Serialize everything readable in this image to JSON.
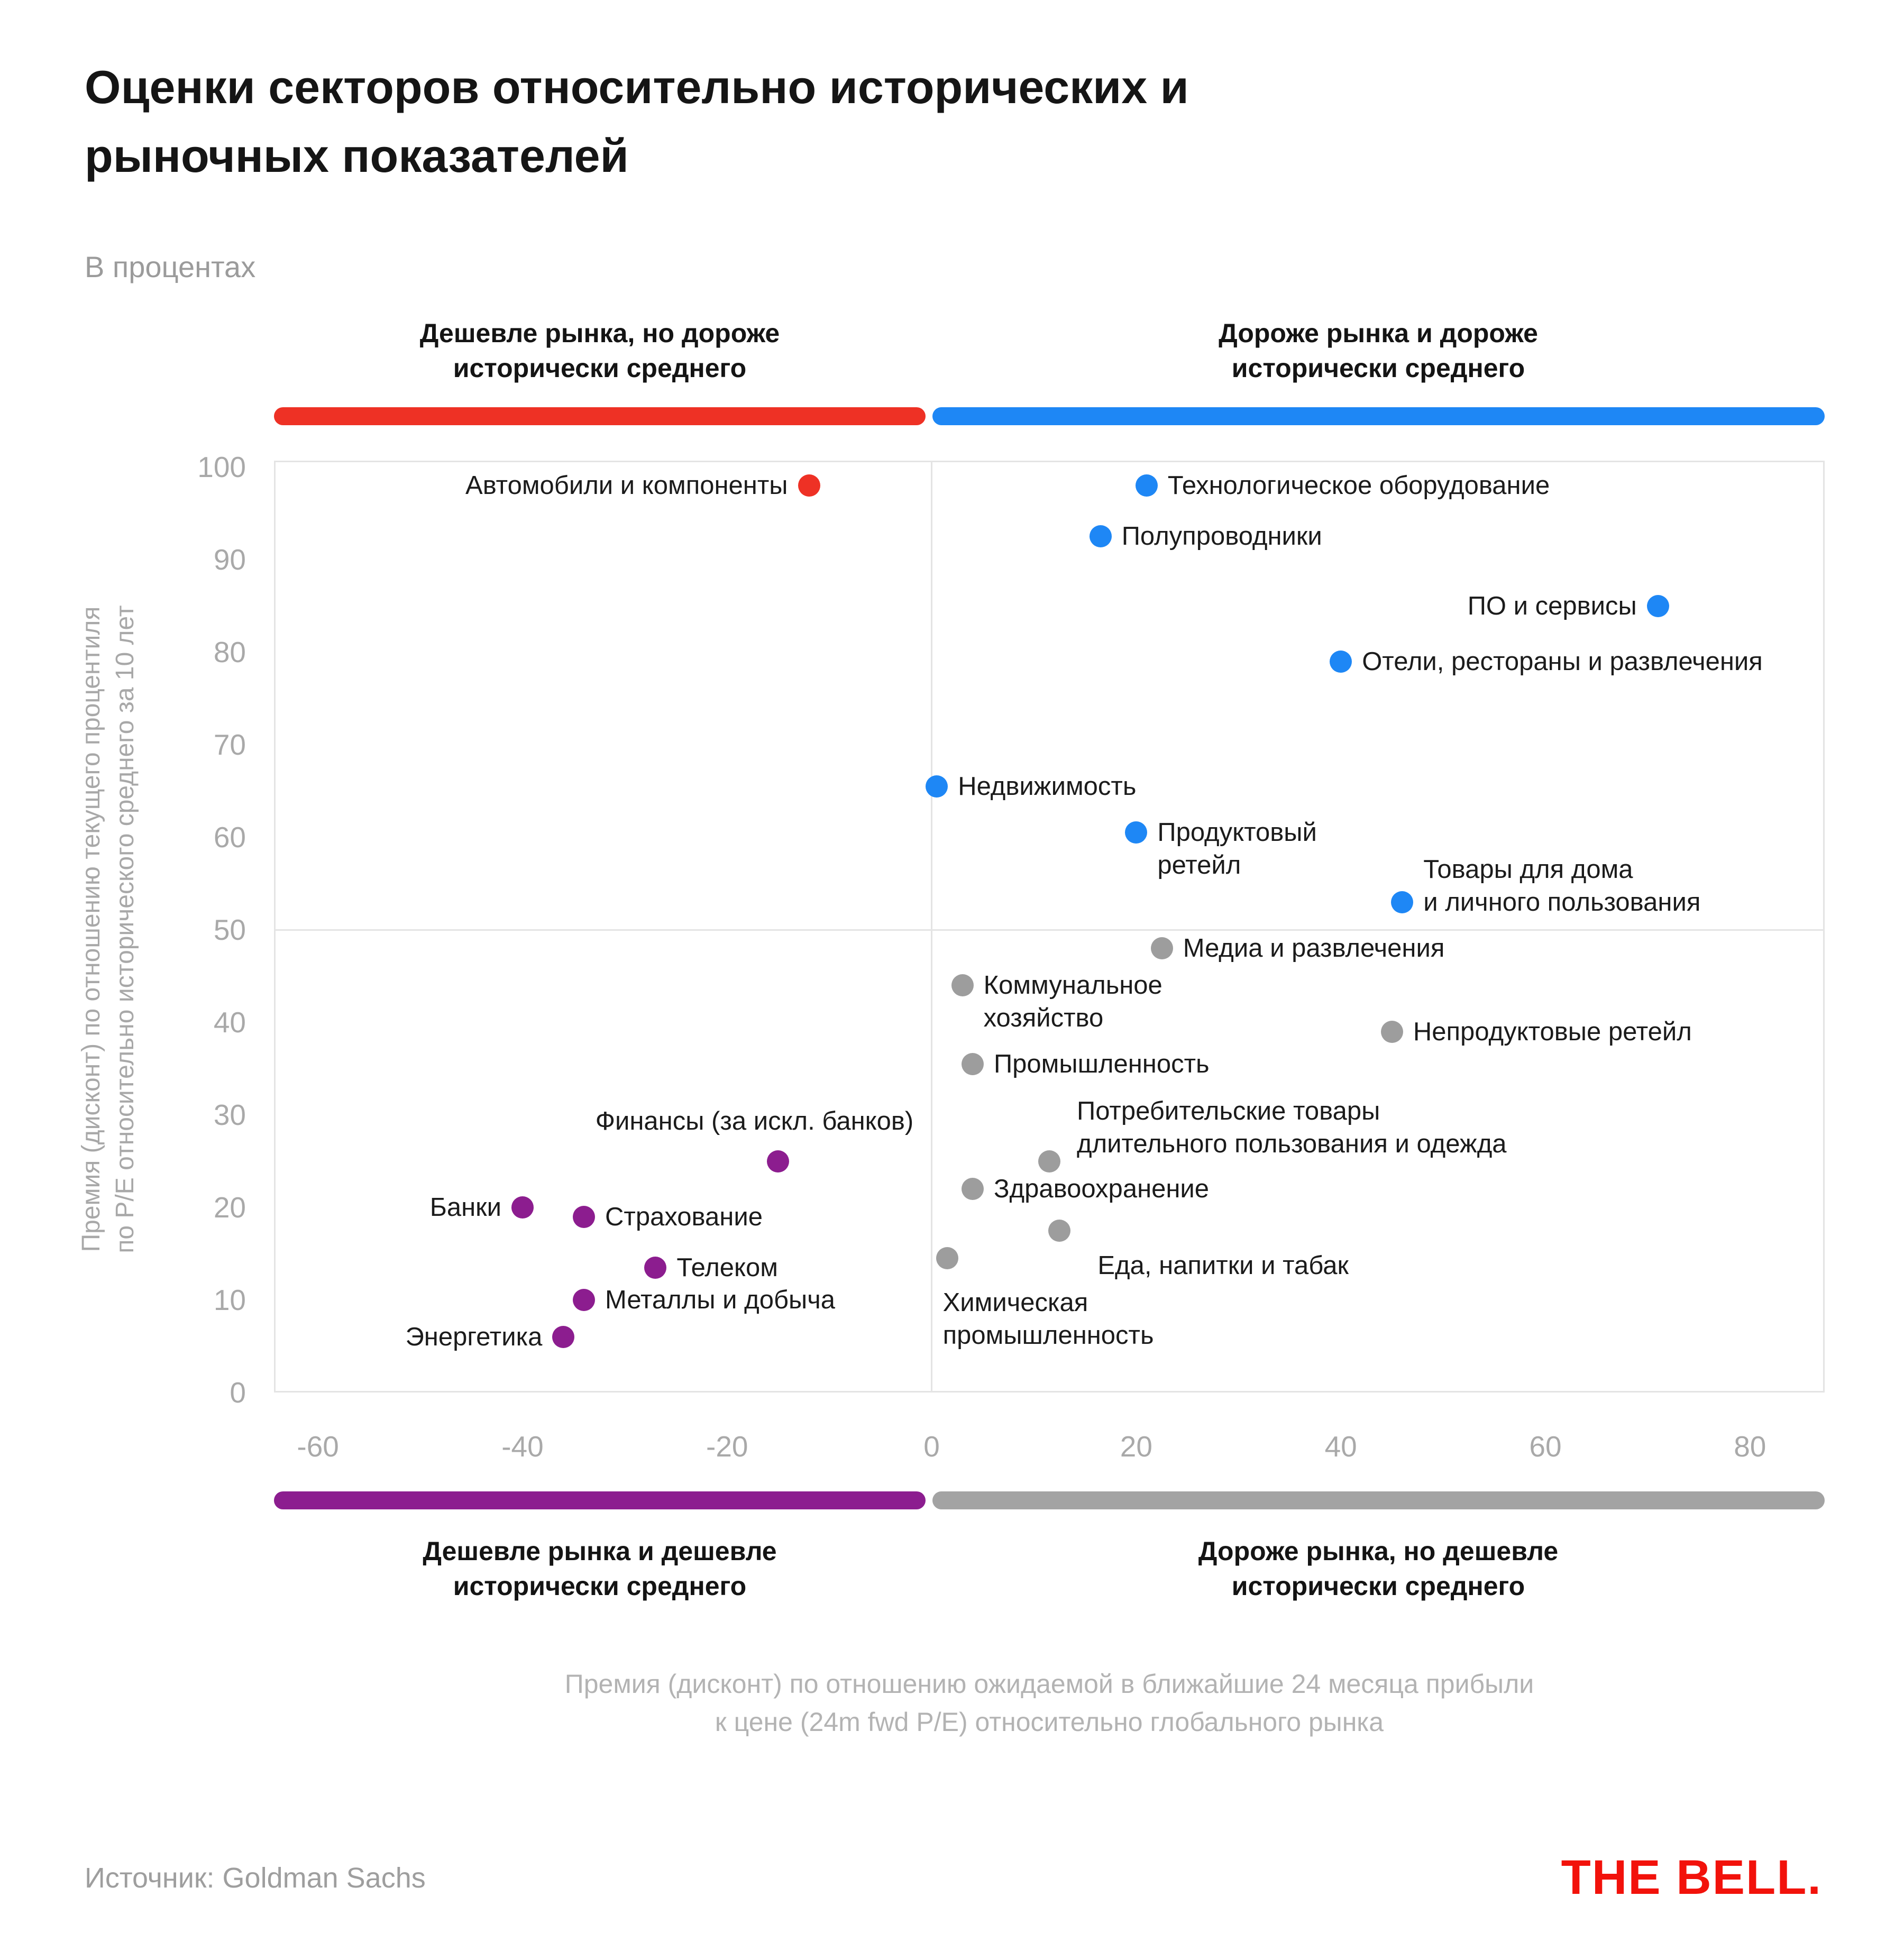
{
  "title_lines": [
    "Оценки секторов относительно исторических и",
    "рыночных показателей"
  ],
  "subtitle": "В процентах",
  "quadrant_labels": {
    "top_left": [
      "Дешевле рынка, но дороже",
      "исторически среднего"
    ],
    "top_right": [
      "Дороже рынка и дороже",
      "исторически среднего"
    ],
    "bottom_left": [
      "Дешевле рынка и дешевле",
      "исторически среднего"
    ],
    "bottom_right": [
      "Дороже рынка, но дешевле",
      "исторически среднего"
    ]
  },
  "colors": {
    "red": "#EE3125",
    "blue": "#1E87F5",
    "purple": "#8C1D8F",
    "gray": "#9D9D9D",
    "bar_gray": "#A3A3A3",
    "grid": "#E4E4E4",
    "tick_text": "#A9A9A9",
    "logo_red": "#F2120B"
  },
  "chart_data": {
    "type": "scatter",
    "title": "Оценки секторов относительно исторических и рыночных показателей",
    "xlabel": "Премия (дисконт) по отношению ожидаемой в ближайшие 24 месяца прибыли к цене (24m fwd P/E) относительно глобального рынка",
    "ylabel_lines": [
      "Премия (дисконт) по отношению текущего процентиля",
      "по P/E относительно исторического среднего за 10 лет"
    ],
    "x_ticks": [
      -60,
      -40,
      -20,
      0,
      20,
      40,
      60,
      80
    ],
    "y_ticks": [
      100,
      90,
      80,
      70,
      60,
      50,
      40,
      30,
      20,
      10,
      0
    ],
    "xlim": [
      -64.3,
      87.3
    ],
    "ylim": [
      0,
      100.7
    ],
    "grid": "quadrant-divider-lines at x=0 and y=50",
    "legend_position": "none",
    "points": [
      {
        "name": "Автомобили и компоненты",
        "x": -12,
        "y": 98,
        "group": "red",
        "label_lines": [
          "Автомобили и компоненты"
        ],
        "label_pos": "left"
      },
      {
        "name": "Технологическое оборудование",
        "x": 21,
        "y": 98,
        "group": "blue",
        "label_lines": [
          "Технологическое оборудование"
        ],
        "label_pos": "right"
      },
      {
        "name": "Полупроводники",
        "x": 16.5,
        "y": 92.5,
        "group": "blue",
        "label_lines": [
          "Полупроводники"
        ],
        "label_pos": "right"
      },
      {
        "name": "ПО и сервисы",
        "x": 71,
        "y": 85,
        "group": "blue",
        "label_lines": [
          "ПО и сервисы"
        ],
        "label_pos": "left"
      },
      {
        "name": "Отели, рестораны и развлечения",
        "x": 40,
        "y": 79,
        "group": "blue",
        "label_lines": [
          "Отели, рестораны и развлечения"
        ],
        "label_pos": "right"
      },
      {
        "name": "Недвижимость",
        "x": 0.5,
        "y": 65.5,
        "group": "blue",
        "label_lines": [
          "Недвижимость"
        ],
        "label_pos": "right"
      },
      {
        "name": "Продуктовый ретейл",
        "x": 20,
        "y": 60.5,
        "group": "blue",
        "label_lines": [
          "Продуктовый",
          "ретейл"
        ],
        "label_pos": "right-first"
      },
      {
        "name": "Товары для дома и личного пользования",
        "x": 46,
        "y": 53,
        "group": "blue",
        "label_lines": [
          "Товары для дома",
          "и личного пользования"
        ],
        "label_pos": "right-second"
      },
      {
        "name": "Медиа и развлечения",
        "x": 22.5,
        "y": 48,
        "group": "gray",
        "label_lines": [
          "Медиа и развлечения"
        ],
        "label_pos": "right"
      },
      {
        "name": "Коммунальное хозяйство",
        "x": 3,
        "y": 44,
        "group": "gray",
        "label_lines": [
          "Коммунальное",
          "хозяйство"
        ],
        "label_pos": "right-first"
      },
      {
        "name": "Непродуктовые ретейл",
        "x": 45,
        "y": 39,
        "group": "gray",
        "label_lines": [
          "Непродуктовые ретейл"
        ],
        "label_pos": "right"
      },
      {
        "name": "Промышленность",
        "x": 4,
        "y": 35.5,
        "group": "gray",
        "label_lines": [
          "Промышленность"
        ],
        "label_pos": "right"
      },
      {
        "name": "Потребительские товары длительного пользования и одежда",
        "x": 11.5,
        "y": 25,
        "group": "gray",
        "label_lines": [
          "Потребительские товары",
          "длительного пользования и одежда"
        ],
        "label_pos": "above-right"
      },
      {
        "name": "Здравоохранение",
        "x": 4,
        "y": 22,
        "group": "gray",
        "label_lines": [
          "Здравоохранение"
        ],
        "label_pos": "right"
      },
      {
        "name": "Еда, напитки и табак",
        "x": 12.5,
        "y": 17.5,
        "group": "gray",
        "label_lines": [
          "Еда, напитки и табак"
        ],
        "label_pos": "below-right"
      },
      {
        "name": "Химическая промышленность",
        "x": 1.5,
        "y": 14.5,
        "group": "gray",
        "label_lines": [
          "Химическая",
          "промышленность"
        ],
        "label_pos": "below"
      },
      {
        "name": "Финансы (за искл. банков)",
        "x": -15,
        "y": 25,
        "group": "purple",
        "label_lines": [
          "Финансы (за искл. банков)"
        ],
        "label_pos": "above",
        "label_dx": -45
      },
      {
        "name": "Банки",
        "x": -40,
        "y": 20,
        "group": "purple",
        "label_lines": [
          "Банки"
        ],
        "label_pos": "left"
      },
      {
        "name": "Страхование",
        "x": -34,
        "y": 19,
        "group": "purple",
        "label_lines": [
          "Страхование"
        ],
        "label_pos": "right"
      },
      {
        "name": "Телеком",
        "x": -27,
        "y": 13.5,
        "group": "purple",
        "label_lines": [
          "Телеком"
        ],
        "label_pos": "right"
      },
      {
        "name": "Металлы и добыча",
        "x": -34,
        "y": 10,
        "group": "purple",
        "label_lines": [
          "Металлы и добыча"
        ],
        "label_pos": "right"
      },
      {
        "name": "Энергетика",
        "x": -36,
        "y": 6,
        "group": "purple",
        "label_lines": [
          "Энергетика"
        ],
        "label_pos": "left"
      }
    ]
  },
  "footnote_lines": [
    "Премия (дисконт) по отношению ожидаемой в ближайшие 24 месяца прибыли",
    "к цене (24m fwd P/E) относительно глобального рынка"
  ],
  "source": "Источник: Goldman Sachs",
  "logo": "THE BELL."
}
